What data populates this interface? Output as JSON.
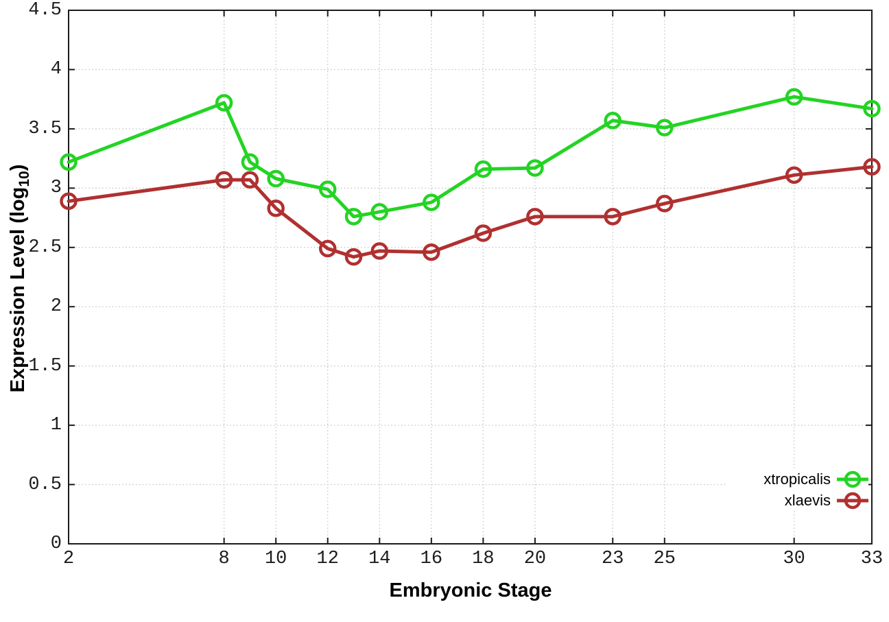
{
  "chart_data": {
    "type": "line",
    "title": "",
    "xlabel": "Embryonic Stage",
    "ylabel": "Expression Level (log10)",
    "ylabel_prefix": "Expression Level (log",
    "ylabel_sub": "10",
    "ylabel_suffix": ")",
    "x": [
      2,
      8,
      9,
      10,
      12,
      13,
      14,
      16,
      18,
      20,
      23,
      25,
      30,
      33
    ],
    "series": [
      {
        "name": "xtropicalis",
        "color": "#23d423",
        "values": [
          3.22,
          3.72,
          3.22,
          3.08,
          2.99,
          2.76,
          2.8,
          2.88,
          3.16,
          3.17,
          3.57,
          3.51,
          3.77,
          3.67
        ]
      },
      {
        "name": "xlaevis",
        "color": "#b03030",
        "values": [
          2.89,
          3.07,
          3.07,
          2.83,
          2.49,
          2.42,
          2.47,
          2.46,
          2.62,
          2.76,
          2.76,
          2.87,
          3.11,
          3.18
        ]
      }
    ],
    "xlim": [
      2,
      33
    ],
    "ylim": [
      0,
      4.5
    ],
    "x_ticks": [
      2,
      8,
      10,
      12,
      14,
      16,
      18,
      20,
      23,
      25,
      30,
      33
    ],
    "x_tick_labels": [
      "2",
      "8",
      "10",
      "12",
      "14",
      "16",
      "18",
      "20",
      "23",
      "25",
      "30",
      "33"
    ],
    "y_ticks": [
      0,
      0.5,
      1,
      1.5,
      2,
      2.5,
      3,
      3.5,
      4,
      4.5
    ],
    "y_tick_labels": [
      "0",
      "0.5",
      "1",
      "1.5",
      "2",
      "2.5",
      "3",
      "3.5",
      "4",
      "4.5"
    ],
    "x_grid": [
      8,
      10,
      12,
      14,
      16,
      18,
      20,
      23,
      25,
      30
    ],
    "y_grid": [
      0.5,
      1,
      1.5,
      2,
      2.5,
      3,
      3.5,
      4
    ],
    "grid": "dotted",
    "legend_position": "bottom-right-inside",
    "marker": "open-circle",
    "background": "#ffffff",
    "grid_color": "#c2c2c2",
    "border_color": "#1a1a1a",
    "tick_label_color": "#1c1c1c"
  }
}
